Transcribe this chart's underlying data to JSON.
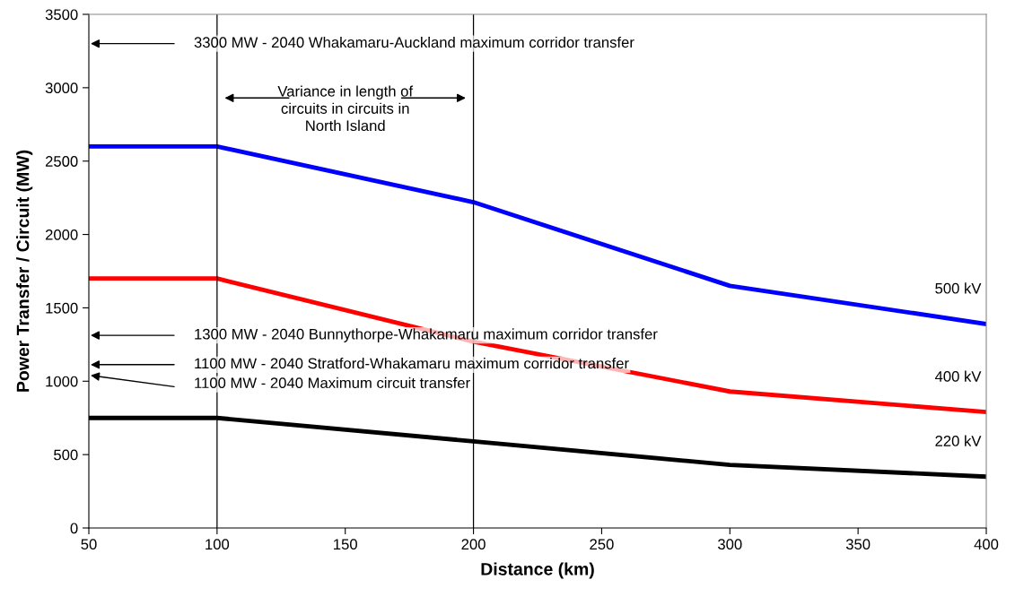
{
  "chart_data": {
    "type": "line",
    "xlabel": "Distance (km)",
    "ylabel": "Power Transfer / Circuit (MW)",
    "x": [
      50,
      100,
      200,
      300,
      400
    ],
    "series": [
      {
        "name": "500 kV",
        "color": "#0000ff",
        "values": [
          2600,
          2600,
          2220,
          1650,
          1390
        ]
      },
      {
        "name": "400 kV",
        "color": "#ff0000",
        "values": [
          1700,
          1700,
          1270,
          930,
          790
        ]
      },
      {
        "name": "220 kV",
        "color": "#000000",
        "values": [
          750,
          750,
          590,
          430,
          350
        ]
      }
    ],
    "xlim": [
      50,
      400
    ],
    "xticks": [
      50,
      100,
      150,
      200,
      250,
      300,
      350,
      400
    ],
    "ylim": [
      0,
      3500
    ],
    "yticks": [
      0,
      500,
      1000,
      1500,
      2000,
      2500,
      3000,
      3500
    ],
    "ref_lines": [
      {
        "axis": "x",
        "value": 100,
        "color": "#000000"
      },
      {
        "axis": "x",
        "value": 200,
        "color": "#000000"
      }
    ],
    "annotations": [
      "3300 MW - 2040 Whakamaru-Auckland maximum corridor transfer",
      "1300 MW - 2040 Bunnythorpe-Whakamaru maximum corridor transfer",
      "1100 MW - 2040 Stratford-Whakamaru maximum corridor transfer",
      "1100 MW - 2040 Maximum circuit transfer",
      "Variance in length of\ncircuits in circuits in\nNorth Island"
    ],
    "grid": false,
    "legend": false,
    "marker": "none",
    "line_style": "solid"
  }
}
